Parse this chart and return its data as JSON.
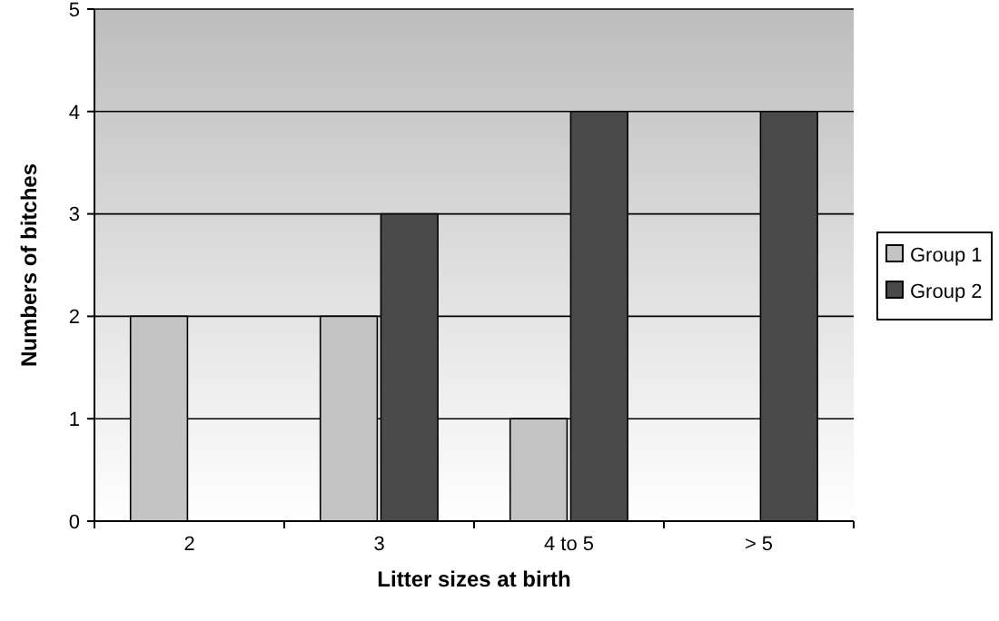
{
  "chart_data": {
    "type": "bar",
    "xlabel": "Litter sizes at birth",
    "ylabel": "Numbers of bitches",
    "categories": [
      "2",
      "3",
      "4 to 5",
      "> 5"
    ],
    "series": [
      {
        "name": "Group 1",
        "color": "#c4c4c4",
        "values": [
          2,
          2,
          1,
          0
        ]
      },
      {
        "name": "Group 2",
        "color": "#4a4a4a",
        "values": [
          0,
          3,
          4,
          4
        ]
      }
    ],
    "ylim": [
      0,
      5
    ],
    "yticks": [
      0,
      1,
      2,
      3,
      4,
      5
    ],
    "grid": "y",
    "legend": "right"
  }
}
